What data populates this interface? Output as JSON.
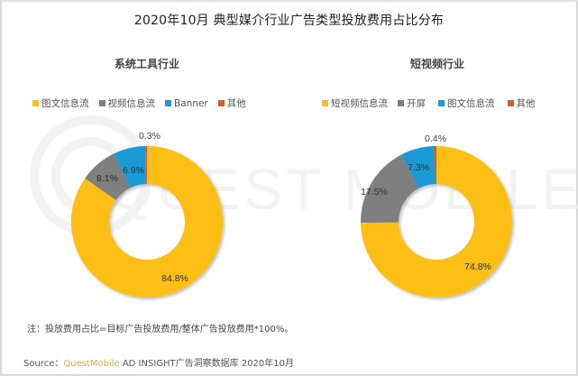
{
  "title": "2020年10月 典型媒介行业广告类型投放费用占比分布",
  "colors": {
    "yellow": "#FDBE16",
    "gray": "#7F7F7F",
    "blue": "#1B9AD6",
    "red": "#E8542F"
  },
  "charts": [
    {
      "subtitle": "系统工具行业",
      "legend": [
        {
          "label": "图文信息流",
          "color": "#FDBE16"
        },
        {
          "label": "视频信息流",
          "color": "#7F7F7F"
        },
        {
          "label": "Banner",
          "color": "#1B9AD6"
        },
        {
          "label": "其他",
          "color": "#E8542F"
        }
      ],
      "labels": [
        "84.8%",
        "8.1%",
        "6.9%",
        "0.3%"
      ]
    },
    {
      "subtitle": "短视频行业",
      "legend": [
        {
          "label": "短视频信息流",
          "color": "#FDBE16"
        },
        {
          "label": "开屏",
          "color": "#7F7F7F"
        },
        {
          "label": "图文信息流",
          "color": "#1B9AD6"
        },
        {
          "label": "其他",
          "color": "#E8542F"
        }
      ],
      "labels": [
        "74.8%",
        "17.5%",
        "7.3%",
        "0.4%"
      ]
    }
  ],
  "chart_data": [
    {
      "type": "pie",
      "variant": "donut",
      "title": "系统工具行业",
      "categories": [
        "图文信息流",
        "视频信息流",
        "Banner",
        "其他"
      ],
      "values": [
        84.8,
        8.1,
        6.9,
        0.3
      ],
      "unit": "%",
      "colors": [
        "#FDBE16",
        "#7F7F7F",
        "#1B9AD6",
        "#E8542F"
      ],
      "legend_position": "top"
    },
    {
      "type": "pie",
      "variant": "donut",
      "title": "短视频行业",
      "categories": [
        "短视频信息流",
        "开屏",
        "图文信息流",
        "其他"
      ],
      "values": [
        74.8,
        17.5,
        7.3,
        0.4
      ],
      "unit": "%",
      "colors": [
        "#FDBE16",
        "#7F7F7F",
        "#1B9AD6",
        "#E8542F"
      ],
      "legend_position": "top"
    }
  ],
  "watermark": "QUEST MOBILE",
  "note": "注：投放费用占比=目标广告投放费用/整体广告投放费用*100%。",
  "source": {
    "prefix": "Source：",
    "brand": "QuestMobile",
    "suffix": " AD INSIGHT广告洞察数据库 2020年10月"
  }
}
